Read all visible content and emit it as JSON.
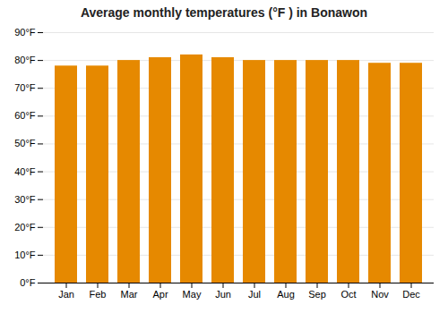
{
  "chart_data": {
    "type": "bar",
    "title": "Average monthly temperatures (°F ) in Bonawon",
    "categories": [
      "Jan",
      "Feb",
      "Mar",
      "Apr",
      "May",
      "Jun",
      "Jul",
      "Aug",
      "Sep",
      "Oct",
      "Nov",
      "Dec"
    ],
    "values": [
      78,
      78,
      80,
      81,
      82,
      81,
      80,
      80,
      80,
      80,
      79,
      79
    ],
    "color": "#E68900",
    "ylim": [
      0,
      90
    ],
    "yticks": [
      {
        "value": 0,
        "label": "0°F"
      },
      {
        "value": 10,
        "label": "10°F"
      },
      {
        "value": 20,
        "label": "20°F"
      },
      {
        "value": 30,
        "label": "30°F"
      },
      {
        "value": 40,
        "label": "40°F"
      },
      {
        "value": 50,
        "label": "50°F"
      },
      {
        "value": 60,
        "label": "60°F"
      },
      {
        "value": 70,
        "label": "70°F"
      },
      {
        "value": 80,
        "label": "80°F"
      },
      {
        "value": 90,
        "label": "90°F"
      }
    ],
    "grid": true
  }
}
